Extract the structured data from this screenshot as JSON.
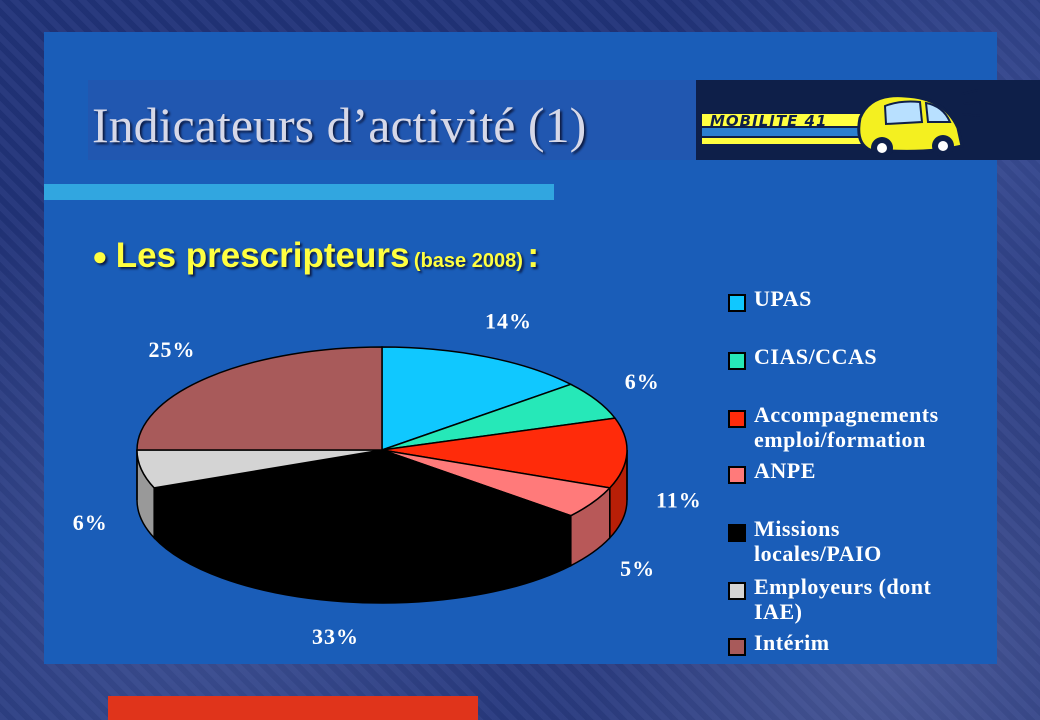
{
  "slide": {
    "title": "Indicateurs d’activité (1)",
    "subtitle_main": "Les prescripteurs",
    "subtitle_base": "(base 2008)",
    "subtitle_colon": ":",
    "logo_text": "MOBILITÉ 41"
  },
  "chart_data": {
    "type": "pie",
    "categories": [
      "UPAS",
      "CIAS/CCAS",
      "Accompagnements emploi/formation",
      "ANPE",
      "Missions locales/PAIO",
      "Employeurs (dont IAE)",
      "Intérim"
    ],
    "values": [
      14,
      6,
      11,
      5,
      33,
      6,
      25
    ],
    "labels": [
      "14%",
      "6%",
      "11%",
      "5%",
      "33%",
      "6%",
      "25%"
    ],
    "colors": [
      "#10c8ff",
      "#26e8b8",
      "#ff2b0a",
      "#ff7a7a",
      "#000000",
      "#d4d4d4",
      "#a85a5a"
    ],
    "legend_position": "right",
    "legend_lines": [
      [
        "UPAS"
      ],
      [
        "CIAS/CCAS"
      ],
      [
        "Accompagnements",
        "emploi/formation"
      ],
      [
        "ANPE"
      ],
      [
        "Missions",
        "locales/PAIO"
      ],
      [
        "Employeurs (dont",
        "IAE)"
      ],
      [
        "Intérim"
      ]
    ],
    "title": "",
    "three_d": true
  }
}
